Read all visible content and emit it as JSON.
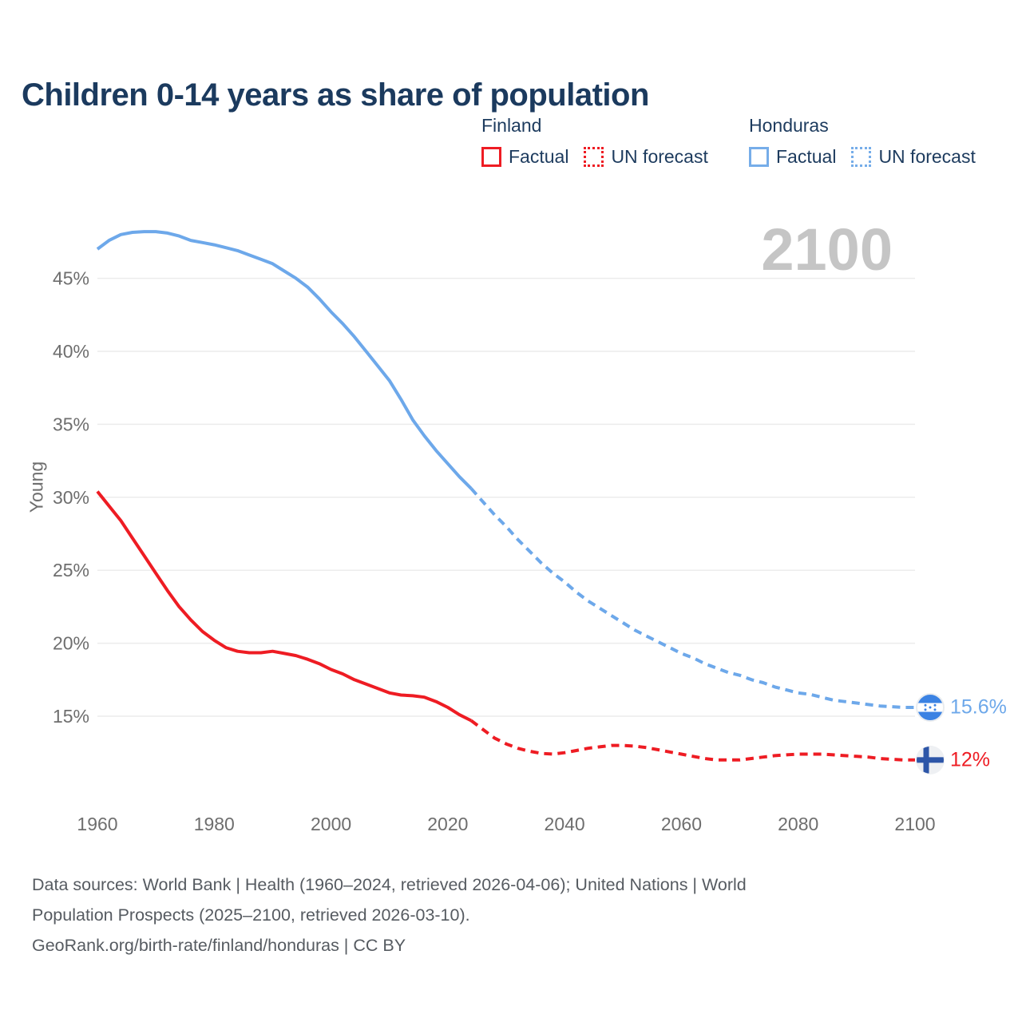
{
  "title": "Children 0-14 years as share of population",
  "watermark": "2100",
  "ylabel": "Young",
  "legend": {
    "finland": {
      "label": "Finland",
      "factual": "Factual",
      "forecast": "UN forecast"
    },
    "honduras": {
      "label": "Honduras",
      "factual": "Factual",
      "forecast": "UN forecast"
    }
  },
  "end_labels": {
    "honduras": "15.6%",
    "finland": "12%"
  },
  "footer": {
    "sources_line1": "Data sources: World Bank | Health (1960–2024, retrieved 2026-04-06); United Nations | World",
    "sources_line2": "Population Prospects (2025–2100, retrieved 2026-03-10).",
    "link_line": "GeoRank.org/birth-rate/finland/honduras | CC BY"
  },
  "colors": {
    "finland_line": "#ee1c23",
    "honduras_line": "#6da8ea",
    "title_text": "#1b3a5e",
    "legend_text": "#1d3b5e",
    "axis_text": "#6e6e6e",
    "grid": "#ececec",
    "watermark_text": "#c5c5c5",
    "footer_text": "#565b61",
    "honduras_flag_blue": "#3b82e3",
    "finland_flag_blue": "#2d56a8",
    "flag_circle_bg": "#e9ecef"
  },
  "chart_data": {
    "type": "line",
    "title": "Children 0-14 years as share of population",
    "xlabel": "",
    "ylabel": "Young",
    "x_ticks": [
      1960,
      1980,
      2000,
      2020,
      2040,
      2060,
      2080,
      2100
    ],
    "y_ticks": [
      15,
      20,
      25,
      30,
      35,
      40,
      45
    ],
    "y_tick_suffix": "%",
    "xlim": [
      1960,
      2100
    ],
    "ylim": [
      11.5,
      49
    ],
    "grid": true,
    "legend_position": "top-right",
    "series": [
      {
        "name": "Honduras Factual",
        "style": "solid",
        "color": "#6da8ea",
        "points": [
          [
            1960,
            47.0
          ],
          [
            1962,
            47.6
          ],
          [
            1964,
            48.0
          ],
          [
            1966,
            48.15
          ],
          [
            1968,
            48.2
          ],
          [
            1970,
            48.2
          ],
          [
            1972,
            48.1
          ],
          [
            1974,
            47.9
          ],
          [
            1976,
            47.6
          ],
          [
            1978,
            47.45
          ],
          [
            1980,
            47.3
          ],
          [
            1982,
            47.1
          ],
          [
            1984,
            46.9
          ],
          [
            1986,
            46.6
          ],
          [
            1988,
            46.3
          ],
          [
            1990,
            46.0
          ],
          [
            1992,
            45.5
          ],
          [
            1994,
            45.0
          ],
          [
            1996,
            44.4
          ],
          [
            1998,
            43.6
          ],
          [
            2000,
            42.7
          ],
          [
            2002,
            41.9
          ],
          [
            2004,
            41.0
          ],
          [
            2006,
            40.0
          ],
          [
            2008,
            39.0
          ],
          [
            2010,
            38.0
          ],
          [
            2012,
            36.7
          ],
          [
            2014,
            35.3
          ],
          [
            2016,
            34.2
          ],
          [
            2018,
            33.2
          ],
          [
            2020,
            32.3
          ],
          [
            2022,
            31.4
          ],
          [
            2024,
            30.6
          ]
        ]
      },
      {
        "name": "Honduras UN forecast",
        "style": "dashed",
        "color": "#6da8ea",
        "points": [
          [
            2024,
            30.6
          ],
          [
            2026,
            29.7
          ],
          [
            2028,
            28.8
          ],
          [
            2030,
            28.0
          ],
          [
            2032,
            27.1
          ],
          [
            2034,
            26.3
          ],
          [
            2036,
            25.5
          ],
          [
            2038,
            24.8
          ],
          [
            2040,
            24.2
          ],
          [
            2042,
            23.5
          ],
          [
            2044,
            22.9
          ],
          [
            2046,
            22.4
          ],
          [
            2048,
            21.9
          ],
          [
            2050,
            21.4
          ],
          [
            2052,
            20.9
          ],
          [
            2054,
            20.5
          ],
          [
            2056,
            20.1
          ],
          [
            2058,
            19.7
          ],
          [
            2060,
            19.3
          ],
          [
            2062,
            19.0
          ],
          [
            2064,
            18.6
          ],
          [
            2066,
            18.3
          ],
          [
            2068,
            18.0
          ],
          [
            2070,
            17.8
          ],
          [
            2072,
            17.5
          ],
          [
            2074,
            17.3
          ],
          [
            2076,
            17.0
          ],
          [
            2078,
            16.8
          ],
          [
            2080,
            16.6
          ],
          [
            2082,
            16.5
          ],
          [
            2084,
            16.3
          ],
          [
            2086,
            16.1
          ],
          [
            2088,
            16.0
          ],
          [
            2090,
            15.9
          ],
          [
            2092,
            15.8
          ],
          [
            2094,
            15.7
          ],
          [
            2096,
            15.65
          ],
          [
            2098,
            15.6
          ],
          [
            2100,
            15.6
          ]
        ]
      },
      {
        "name": "Finland Factual",
        "style": "solid",
        "color": "#ee1c23",
        "points": [
          [
            1960,
            30.4
          ],
          [
            1962,
            29.4
          ],
          [
            1964,
            28.4
          ],
          [
            1966,
            27.2
          ],
          [
            1968,
            26.0
          ],
          [
            1970,
            24.8
          ],
          [
            1972,
            23.6
          ],
          [
            1974,
            22.5
          ],
          [
            1976,
            21.6
          ],
          [
            1978,
            20.8
          ],
          [
            1980,
            20.2
          ],
          [
            1982,
            19.7
          ],
          [
            1984,
            19.45
          ],
          [
            1986,
            19.35
          ],
          [
            1988,
            19.35
          ],
          [
            1990,
            19.45
          ],
          [
            1992,
            19.3
          ],
          [
            1994,
            19.15
          ],
          [
            1996,
            18.9
          ],
          [
            1998,
            18.6
          ],
          [
            2000,
            18.2
          ],
          [
            2002,
            17.9
          ],
          [
            2004,
            17.5
          ],
          [
            2006,
            17.2
          ],
          [
            2008,
            16.9
          ],
          [
            2010,
            16.6
          ],
          [
            2012,
            16.45
          ],
          [
            2014,
            16.4
          ],
          [
            2016,
            16.3
          ],
          [
            2018,
            16.0
          ],
          [
            2020,
            15.6
          ],
          [
            2022,
            15.1
          ],
          [
            2024,
            14.7
          ]
        ]
      },
      {
        "name": "Finland UN forecast",
        "style": "dashed",
        "color": "#ee1c23",
        "points": [
          [
            2024,
            14.7
          ],
          [
            2026,
            14.1
          ],
          [
            2028,
            13.5
          ],
          [
            2030,
            13.1
          ],
          [
            2032,
            12.8
          ],
          [
            2034,
            12.6
          ],
          [
            2036,
            12.45
          ],
          [
            2038,
            12.4
          ],
          [
            2040,
            12.5
          ],
          [
            2042,
            12.65
          ],
          [
            2044,
            12.8
          ],
          [
            2046,
            12.9
          ],
          [
            2048,
            13.0
          ],
          [
            2050,
            13.0
          ],
          [
            2052,
            12.95
          ],
          [
            2054,
            12.85
          ],
          [
            2056,
            12.7
          ],
          [
            2058,
            12.55
          ],
          [
            2060,
            12.4
          ],
          [
            2062,
            12.25
          ],
          [
            2064,
            12.1
          ],
          [
            2066,
            12.0
          ],
          [
            2068,
            12.0
          ],
          [
            2070,
            12.0
          ],
          [
            2072,
            12.1
          ],
          [
            2074,
            12.2
          ],
          [
            2076,
            12.3
          ],
          [
            2078,
            12.35
          ],
          [
            2080,
            12.4
          ],
          [
            2082,
            12.4
          ],
          [
            2084,
            12.4
          ],
          [
            2086,
            12.35
          ],
          [
            2088,
            12.3
          ],
          [
            2090,
            12.25
          ],
          [
            2092,
            12.2
          ],
          [
            2094,
            12.1
          ],
          [
            2096,
            12.05
          ],
          [
            2098,
            12.0
          ],
          [
            2100,
            12.0
          ]
        ]
      }
    ],
    "end_markers": [
      {
        "series": "honduras",
        "value_label": "15.6%",
        "flag": "honduras-flag",
        "year": 2100,
        "value": 15.6
      },
      {
        "series": "finland",
        "value_label": "12%",
        "flag": "finland-flag",
        "year": 2100,
        "value": 12.0
      }
    ]
  }
}
